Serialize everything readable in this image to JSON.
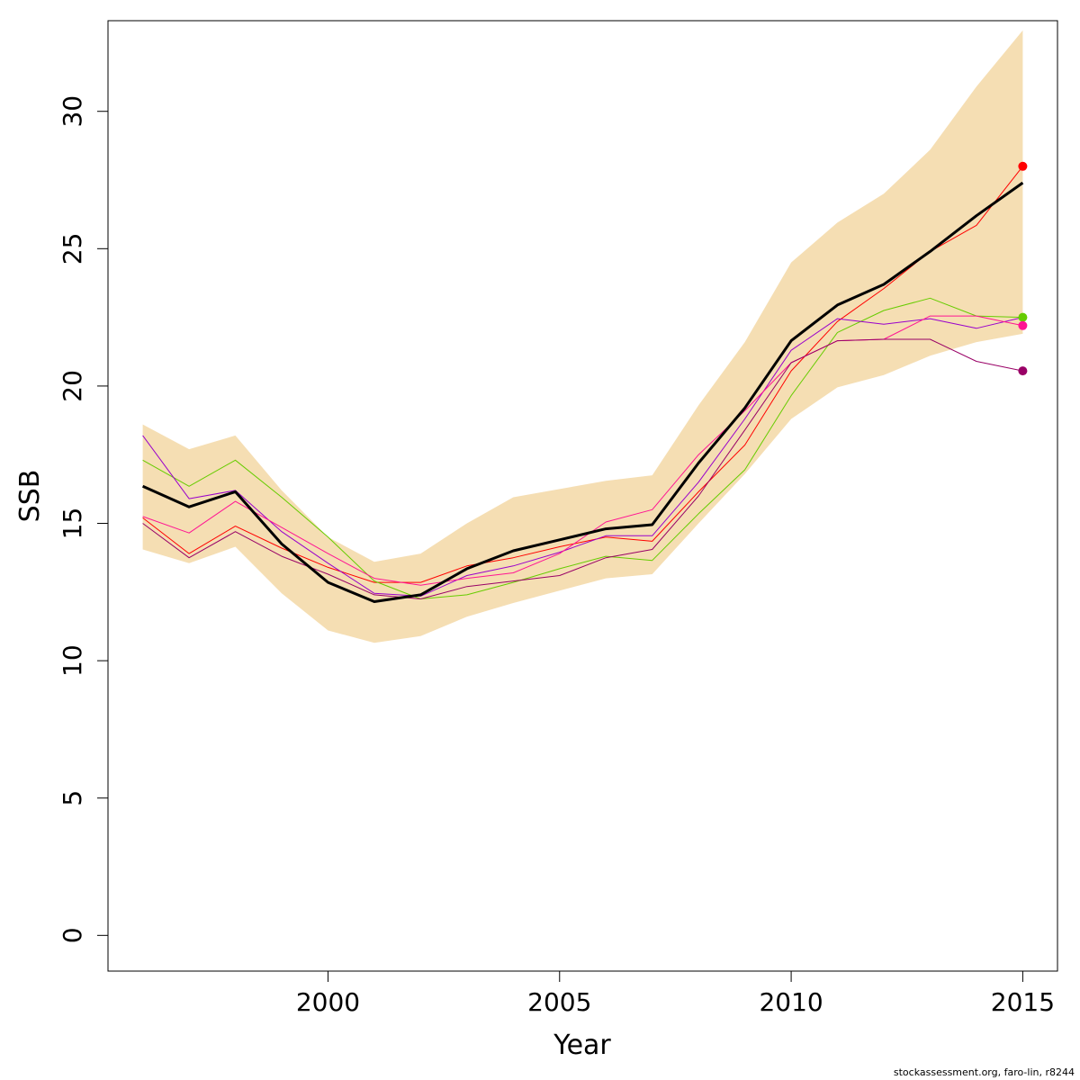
{
  "chart_data": {
    "type": "line",
    "xlabel": "Year",
    "ylabel": "SSB",
    "xlim": [
      1995.25,
      2015.75
    ],
    "ylim": [
      -1.3,
      33.3
    ],
    "xticks": [
      2000,
      2005,
      2010,
      2015
    ],
    "yticks": [
      0,
      5,
      10,
      15,
      20,
      25,
      30
    ],
    "grid": false,
    "x": [
      1996,
      1997,
      1998,
      1999,
      2000,
      2001,
      2002,
      2003,
      2004,
      2005,
      2006,
      2007,
      2008,
      2009,
      2010,
      2011,
      2012,
      2013,
      2014,
      2015
    ],
    "confidence_band": {
      "color": "#F5DEB3",
      "upper": [
        18.6,
        17.7,
        18.2,
        16.2,
        14.5,
        13.6,
        13.9,
        15.0,
        15.95,
        16.25,
        16.55,
        16.75,
        19.3,
        21.6,
        24.5,
        25.95,
        27.0,
        28.6,
        30.9,
        32.95
      ],
      "lower": [
        14.05,
        13.55,
        14.15,
        12.45,
        11.1,
        10.65,
        10.9,
        11.6,
        12.1,
        12.55,
        13.0,
        13.15,
        15.0,
        16.8,
        18.8,
        19.95,
        20.4,
        21.1,
        21.6,
        21.9
      ]
    },
    "series": [
      {
        "color": "#000000",
        "width": 3,
        "values": [
          16.35,
          15.6,
          16.15,
          14.25,
          12.85,
          12.15,
          12.4,
          13.35,
          14.0,
          14.4,
          14.8,
          14.95,
          17.2,
          19.2,
          21.65,
          22.95,
          23.7,
          24.9,
          26.2,
          27.4
        ]
      },
      {
        "color": "#FF0000",
        "width": 1,
        "values": [
          15.2,
          13.9,
          14.9,
          14.1,
          13.4,
          12.85,
          12.85,
          13.45,
          13.75,
          14.15,
          14.5,
          14.35,
          16.15,
          17.85,
          20.55,
          22.35,
          23.55,
          24.9,
          25.85,
          28.0
        ],
        "endpoint_marker": true
      },
      {
        "color": "#66CC00",
        "width": 1,
        "values": [
          17.3,
          16.35,
          17.3,
          15.95,
          14.5,
          12.9,
          12.25,
          12.4,
          12.85,
          13.35,
          13.8,
          13.65,
          15.35,
          16.95,
          19.65,
          21.95,
          22.75,
          23.2,
          22.55,
          22.5
        ],
        "endpoint_marker": true
      },
      {
        "color": "#9900CC",
        "width": 1,
        "values": [
          18.2,
          15.9,
          16.2,
          14.7,
          13.55,
          12.45,
          12.35,
          13.1,
          13.45,
          13.95,
          14.55,
          14.55,
          16.5,
          18.8,
          21.3,
          22.45,
          22.25,
          22.45,
          22.1,
          22.5
        ]
      },
      {
        "color": "#FF1493",
        "width": 1,
        "values": [
          15.25,
          14.65,
          15.8,
          14.85,
          13.9,
          13.0,
          12.75,
          13.0,
          13.2,
          13.9,
          15.05,
          15.5,
          17.5,
          19.1,
          20.85,
          21.65,
          21.7,
          22.55,
          22.55,
          22.2
        ],
        "endpoint_marker": true
      },
      {
        "color": "#990066",
        "width": 1,
        "values": [
          15.0,
          13.75,
          14.7,
          13.8,
          13.15,
          12.4,
          12.25,
          12.7,
          12.9,
          13.1,
          13.75,
          14.05,
          16.0,
          18.4,
          20.85,
          21.65,
          21.7,
          21.7,
          20.9,
          20.55
        ],
        "endpoint_marker": true
      }
    ]
  },
  "footer": "stockassessment.org, faro-lin, r8244"
}
